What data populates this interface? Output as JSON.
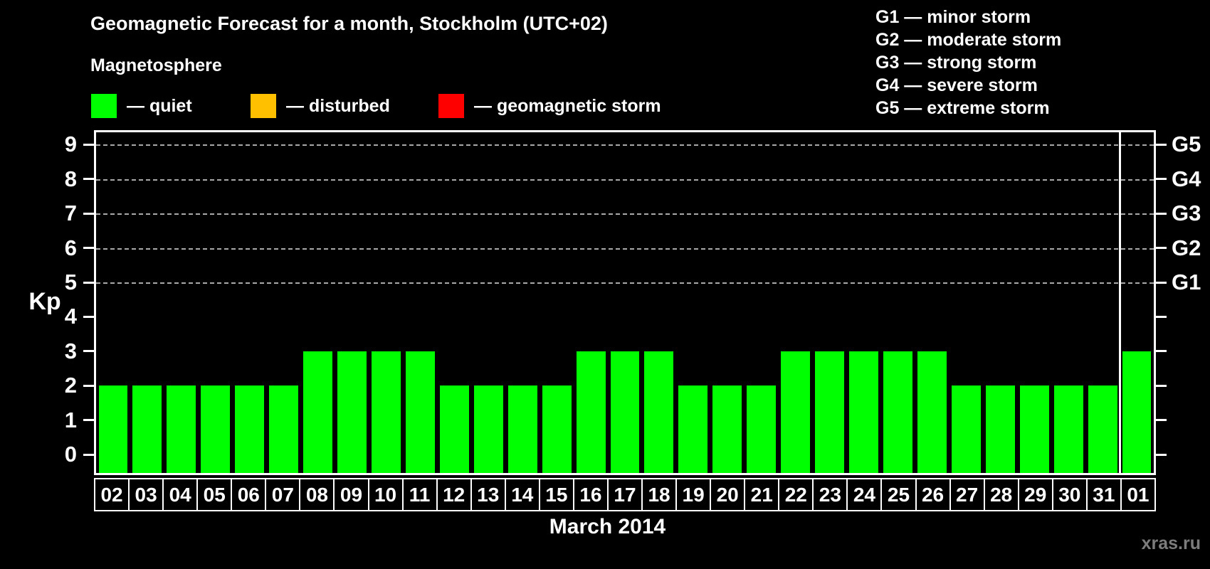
{
  "title": "Geomagnetic Forecast for a month, Stockholm (UTC+02)",
  "subtitle": "Magnetosphere",
  "legend": {
    "items": [
      {
        "label": "— quiet",
        "color": "#00ff00"
      },
      {
        "label": "— disturbed",
        "color": "#ffc000"
      },
      {
        "label": "— geomagnetic storm",
        "color": "#ff0000"
      }
    ]
  },
  "g_scale_legend": [
    "G1 — minor storm",
    "G2 — moderate storm",
    "G3 — strong storm",
    "G4 — severe storm",
    "G5 — extreme storm"
  ],
  "chart_data": {
    "type": "bar",
    "title": "Geomagnetic Forecast for a month, Stockholm (UTC+02)",
    "categories": [
      "02",
      "03",
      "04",
      "05",
      "06",
      "07",
      "08",
      "09",
      "10",
      "11",
      "12",
      "13",
      "14",
      "15",
      "16",
      "17",
      "18",
      "19",
      "20",
      "21",
      "22",
      "23",
      "24",
      "25",
      "26",
      "27",
      "28",
      "29",
      "30",
      "31",
      "01"
    ],
    "values": [
      2,
      2,
      2,
      2,
      2,
      2,
      3,
      3,
      3,
      3,
      2,
      2,
      2,
      2,
      3,
      3,
      3,
      2,
      2,
      2,
      3,
      3,
      3,
      3,
      3,
      2,
      2,
      2,
      2,
      2,
      3
    ],
    "xlabel": "March 2014",
    "ylabel": "Kp",
    "ylim": [
      0,
      9
    ],
    "y_ticks": [
      0,
      1,
      2,
      3,
      4,
      5,
      6,
      7,
      8,
      9
    ],
    "gridlines_at": [
      5,
      6,
      7,
      8,
      9
    ],
    "right_axis_labels": [
      {
        "kp": 5,
        "label": "G1"
      },
      {
        "kp": 6,
        "label": "G2"
      },
      {
        "kp": 7,
        "label": "G3"
      },
      {
        "kp": 8,
        "label": "G4"
      },
      {
        "kp": 9,
        "label": "G5"
      }
    ],
    "bar_color": "#00ff00",
    "month_separator_after_index": 29,
    "grid": "dashed horizontal lines at storm levels only",
    "legend_position": "top"
  },
  "watermark": "xras.ru"
}
